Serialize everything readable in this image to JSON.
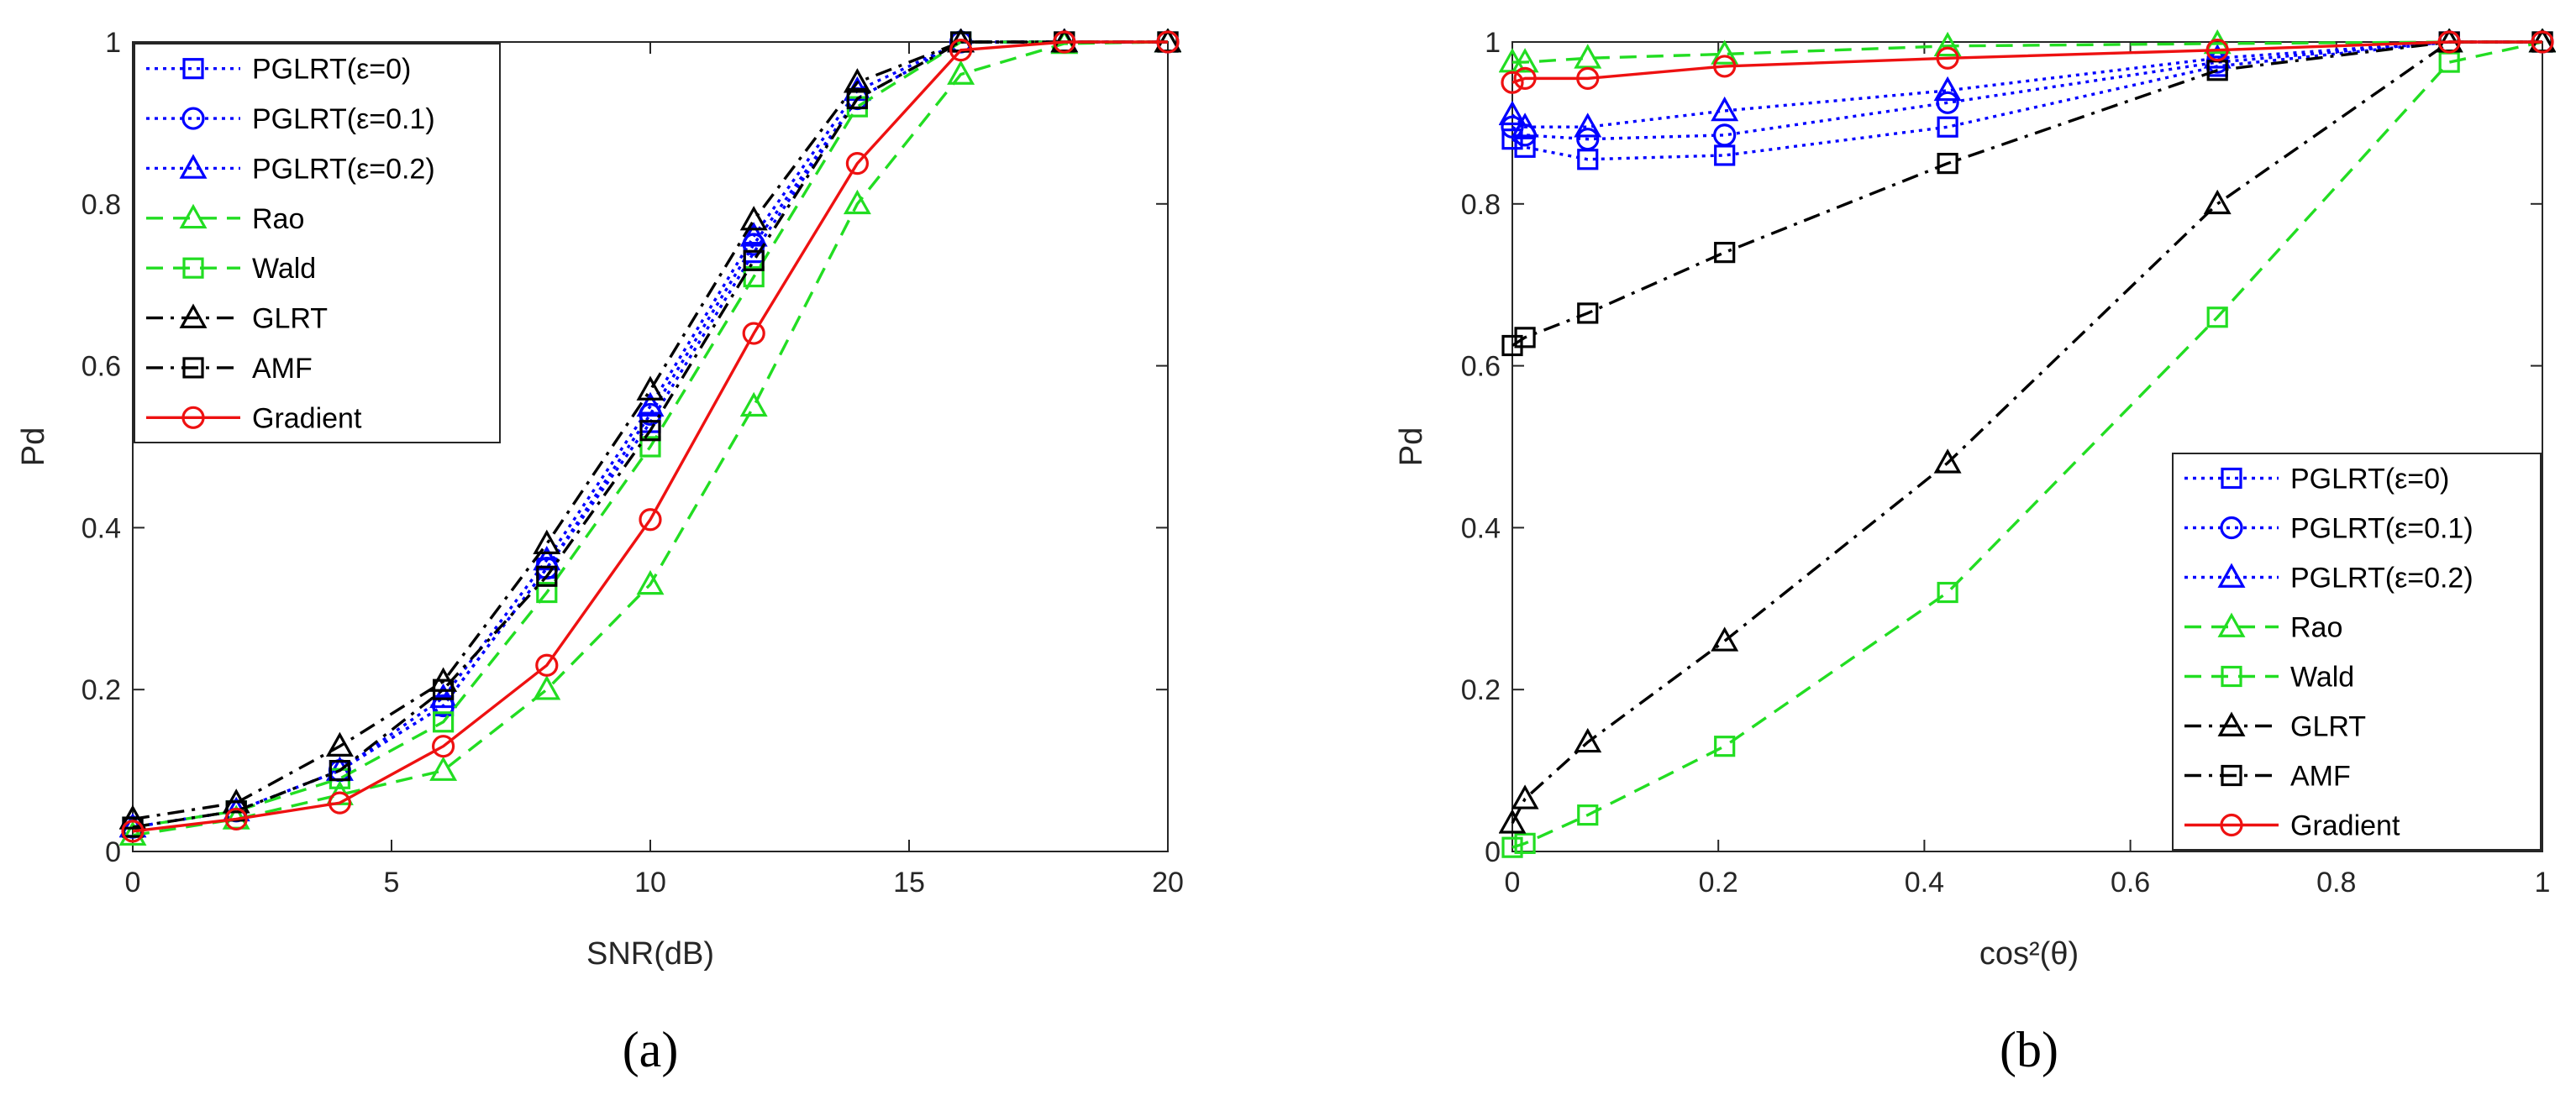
{
  "chart_data": [
    {
      "type": "line",
      "panel_label": "(a)",
      "xlabel": "SNR(dB)",
      "ylabel": "Pd",
      "xlim": [
        0,
        20
      ],
      "ylim": [
        0,
        1
      ],
      "xticks": [
        0,
        5,
        10,
        15,
        20
      ],
      "yticks": [
        0,
        0.2,
        0.4,
        0.6,
        0.8,
        1
      ],
      "xtick_labels": [
        "0",
        "5",
        "10",
        "15",
        "20"
      ],
      "ytick_labels": [
        "0",
        "0.2",
        "0.4",
        "0.6",
        "0.8",
        "1"
      ],
      "legend_position": "top-left",
      "x": [
        0,
        2,
        4,
        6,
        8,
        10,
        12,
        14,
        16,
        18,
        20
      ],
      "series": [
        {
          "name": "PGLRT(ε=0)",
          "color": "#0000ff",
          "dash": "dotted",
          "marker": "square",
          "values": [
            0.03,
            0.05,
            0.1,
            0.18,
            0.35,
            0.53,
            0.74,
            0.93,
            1.0,
            1.0,
            1.0
          ]
        },
        {
          "name": "PGLRT(ε=0.1)",
          "color": "#0000ff",
          "dash": "dotted",
          "marker": "circle",
          "values": [
            0.03,
            0.05,
            0.1,
            0.18,
            0.35,
            0.54,
            0.75,
            0.93,
            1.0,
            1.0,
            1.0
          ]
        },
        {
          "name": "PGLRT(ε=0.2)",
          "color": "#0000ff",
          "dash": "dotted",
          "marker": "triangle",
          "values": [
            0.03,
            0.05,
            0.1,
            0.19,
            0.36,
            0.55,
            0.76,
            0.94,
            1.0,
            1.0,
            1.0
          ]
        },
        {
          "name": "Rao",
          "color": "#22dd22",
          "dash": "dashed",
          "marker": "triangle",
          "values": [
            0.02,
            0.04,
            0.07,
            0.1,
            0.2,
            0.33,
            0.55,
            0.8,
            0.96,
            0.998,
            1.0
          ]
        },
        {
          "name": "Wald",
          "color": "#22dd22",
          "dash": "dashed",
          "marker": "square",
          "values": [
            0.03,
            0.05,
            0.09,
            0.16,
            0.32,
            0.5,
            0.71,
            0.92,
            1.0,
            1.0,
            1.0
          ]
        },
        {
          "name": "GLRT",
          "color": "#000000",
          "dash": "dashdot",
          "marker": "triangle",
          "values": [
            0.04,
            0.06,
            0.13,
            0.21,
            0.38,
            0.57,
            0.78,
            0.95,
            1.0,
            1.0,
            1.0
          ]
        },
        {
          "name": "AMF",
          "color": "#000000",
          "dash": "dashdot",
          "marker": "square",
          "values": [
            0.03,
            0.05,
            0.1,
            0.2,
            0.34,
            0.52,
            0.73,
            0.93,
            1.0,
            1.0,
            1.0
          ]
        },
        {
          "name": "Gradient",
          "color": "#ee1111",
          "dash": "solid",
          "marker": "circle",
          "values": [
            0.025,
            0.04,
            0.06,
            0.13,
            0.23,
            0.41,
            0.64,
            0.85,
            0.99,
            1.0,
            1.0
          ]
        }
      ]
    },
    {
      "type": "line",
      "panel_label": "(b)",
      "xlabel": "cos²(θ)",
      "ylabel": "Pd",
      "xlim": [
        0,
        1
      ],
      "ylim": [
        0,
        1
      ],
      "xticks": [
        0,
        0.2,
        0.4,
        0.6,
        0.8,
        1
      ],
      "yticks": [
        0,
        0.2,
        0.4,
        0.6,
        0.8,
        1
      ],
      "xtick_labels": [
        "0",
        "0.2",
        "0.4",
        "0.6",
        "0.8",
        "1"
      ],
      "ytick_labels": [
        "0",
        "0.2",
        "0.4",
        "0.6",
        "0.8",
        "1"
      ],
      "legend_position": "bottom-right",
      "x": [
        0,
        0.0123,
        0.0732,
        0.2061,
        0.4226,
        0.6845,
        0.9096,
        1.0
      ],
      "series": [
        {
          "name": "PGLRT(ε=0)",
          "color": "#0000ff",
          "dash": "dotted",
          "marker": "square",
          "values": [
            0.88,
            0.87,
            0.855,
            0.86,
            0.895,
            0.97,
            1.0,
            1.0
          ]
        },
        {
          "name": "PGLRT(ε=0.1)",
          "color": "#0000ff",
          "dash": "dotted",
          "marker": "circle",
          "values": [
            0.895,
            0.885,
            0.88,
            0.885,
            0.925,
            0.975,
            1.0,
            1.0
          ]
        },
        {
          "name": "PGLRT(ε=0.2)",
          "color": "#0000ff",
          "dash": "dotted",
          "marker": "triangle",
          "values": [
            0.91,
            0.895,
            0.895,
            0.915,
            0.94,
            0.98,
            1.0,
            1.0
          ]
        },
        {
          "name": "Rao",
          "color": "#22dd22",
          "dash": "dashed",
          "marker": "triangle",
          "values": [
            0.975,
            0.975,
            0.98,
            0.985,
            0.995,
            0.998,
            1.0,
            1.0
          ]
        },
        {
          "name": "Wald",
          "color": "#22dd22",
          "dash": "dashed",
          "marker": "square",
          "values": [
            0.005,
            0.01,
            0.045,
            0.13,
            0.32,
            0.66,
            0.975,
            1.0
          ]
        },
        {
          "name": "GLRT",
          "color": "#000000",
          "dash": "dashdot",
          "marker": "triangle",
          "values": [
            0.035,
            0.065,
            0.135,
            0.26,
            0.48,
            0.8,
            1.0,
            1.0
          ]
        },
        {
          "name": "AMF",
          "color": "#000000",
          "dash": "dashdot",
          "marker": "square",
          "values": [
            0.625,
            0.635,
            0.665,
            0.74,
            0.85,
            0.965,
            1.0,
            1.0
          ]
        },
        {
          "name": "Gradient",
          "color": "#ee1111",
          "dash": "solid",
          "marker": "circle",
          "values": [
            0.95,
            0.955,
            0.955,
            0.97,
            0.98,
            0.99,
            1.0,
            1.0
          ]
        }
      ]
    }
  ]
}
